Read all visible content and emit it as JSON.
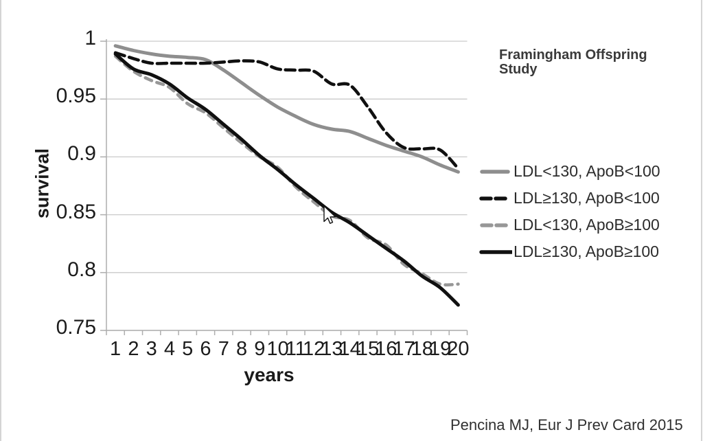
{
  "header": {
    "study_label": "Framingham Offspring Study"
  },
  "footer": {
    "citation": "Pencina MJ, Eur J Prev Card 2015"
  },
  "colors": {
    "gray_line": "#8e8e8e",
    "black_line": "#101010",
    "gray_dashed_line": "#979797",
    "gridline": "#c9c9c9",
    "axis": "#aeaeae",
    "tick_text": "#1c1c1c"
  },
  "chart_data": {
    "type": "line",
    "title": "Framingham Offspring Study",
    "xlabel": "years",
    "ylabel": "survival",
    "x": [
      1,
      2,
      3,
      4,
      5,
      6,
      7,
      8,
      9,
      10,
      11,
      12,
      13,
      14,
      15,
      16,
      17,
      18,
      19,
      20
    ],
    "yticks": [
      1,
      0.95,
      0.9,
      0.85,
      0.8,
      0.75
    ],
    "ytick_labels": [
      "1",
      "0.95",
      "0.9",
      "0.85",
      "0.8",
      "0.75"
    ],
    "ylim": [
      0.75,
      1.0
    ],
    "grid": true,
    "legend_position": "right",
    "series": [
      {
        "name": "LDL<130, ApoB<100",
        "color": "#8e8e8e",
        "dash": "solid",
        "values": [
          0.996,
          0.992,
          0.989,
          0.987,
          0.986,
          0.984,
          0.975,
          0.964,
          0.953,
          0.943,
          0.935,
          0.928,
          0.924,
          0.922,
          0.916,
          0.91,
          0.905,
          0.9,
          0.893,
          0.887
        ]
      },
      {
        "name": "LDL≥130, ApoB<100",
        "color": "#101010",
        "dash": "dashed",
        "values": [
          0.99,
          0.985,
          0.981,
          0.981,
          0.981,
          0.981,
          0.982,
          0.983,
          0.982,
          0.976,
          0.975,
          0.974,
          0.963,
          0.962,
          0.943,
          0.921,
          0.908,
          0.907,
          0.906,
          0.89
        ]
      },
      {
        "name": "LDL<130, ApoB≥100",
        "color": "#979797",
        "dash": "dashed",
        "values": [
          0.987,
          0.974,
          0.966,
          0.96,
          0.946,
          0.938,
          0.925,
          0.912,
          0.9,
          0.891,
          0.874,
          0.861,
          0.849,
          0.845,
          0.83,
          0.824,
          0.807,
          0.799,
          0.79,
          0.79
        ]
      },
      {
        "name": "LDL≥130, ApoB≥100",
        "color": "#101010",
        "dash": "solid",
        "values": [
          0.989,
          0.976,
          0.971,
          0.963,
          0.951,
          0.941,
          0.928,
          0.915,
          0.901,
          0.889,
          0.876,
          0.864,
          0.852,
          0.843,
          0.832,
          0.821,
          0.81,
          0.797,
          0.787,
          0.772
        ]
      }
    ]
  }
}
